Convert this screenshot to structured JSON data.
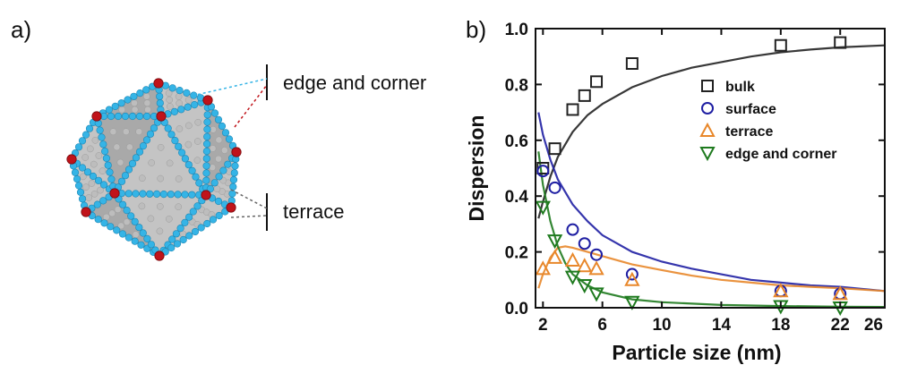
{
  "panel_a": {
    "label": "a)",
    "callouts": [
      "edge and corner",
      "terrace"
    ]
  },
  "panel_b": {
    "label": "b)"
  },
  "colors": {
    "bulk": "#222222",
    "surface": "#1f1fa3",
    "terrace": "#e8872a",
    "edge_and_corner": "#1e7a1e",
    "atom_surface": "#35b4e6",
    "atom_bulk": "#bdbdbd",
    "atom_corner": "#c0131a"
  },
  "chart_data": {
    "type": "scatter",
    "xlabel": "Particle size (nm)",
    "ylabel": "Dispersion",
    "xlim": [
      1.5,
      25
    ],
    "ylim": [
      0,
      1.0
    ],
    "xticks": [
      "2",
      "6",
      "10",
      "14",
      "18",
      "22",
      "26"
    ],
    "yticks": [
      "0.0",
      "0.2",
      "0.4",
      "0.6",
      "0.8",
      "1.0"
    ],
    "legend_position": "upper right",
    "series": [
      {
        "name": "bulk",
        "marker": "square",
        "color": "#222222",
        "x": [
          2.0,
          2.8,
          4.0,
          4.8,
          5.6,
          8.0,
          18.0,
          22.0
        ],
        "y": [
          0.5,
          0.57,
          0.71,
          0.76,
          0.81,
          0.875,
          0.94,
          0.95
        ],
        "fit": [
          [
            1.7,
            0.32
          ],
          [
            2.0,
            0.38
          ],
          [
            2.5,
            0.47
          ],
          [
            3.0,
            0.54
          ],
          [
            4.0,
            0.63
          ],
          [
            5.0,
            0.69
          ],
          [
            6.0,
            0.73
          ],
          [
            8.0,
            0.79
          ],
          [
            10.0,
            0.83
          ],
          [
            12.0,
            0.86
          ],
          [
            14.0,
            0.88
          ],
          [
            16.0,
            0.9
          ],
          [
            18.0,
            0.915
          ],
          [
            20.0,
            0.925
          ],
          [
            22.0,
            0.933
          ],
          [
            25.0,
            0.94
          ]
        ]
      },
      {
        "name": "surface",
        "marker": "circle",
        "color": "#1f1fa3",
        "x": [
          2.0,
          2.8,
          4.0,
          4.8,
          5.6,
          8.0,
          18.0,
          22.0
        ],
        "y": [
          0.49,
          0.43,
          0.28,
          0.23,
          0.19,
          0.12,
          0.06,
          0.05
        ],
        "fit": [
          [
            1.7,
            0.7
          ],
          [
            2.0,
            0.62
          ],
          [
            2.5,
            0.53
          ],
          [
            3.0,
            0.46
          ],
          [
            4.0,
            0.37
          ],
          [
            5.0,
            0.31
          ],
          [
            6.0,
            0.26
          ],
          [
            8.0,
            0.2
          ],
          [
            10.0,
            0.165
          ],
          [
            12.0,
            0.14
          ],
          [
            14.0,
            0.12
          ],
          [
            16.0,
            0.1
          ],
          [
            18.0,
            0.09
          ],
          [
            20.0,
            0.08
          ],
          [
            22.0,
            0.075
          ],
          [
            25.0,
            0.06
          ]
        ]
      },
      {
        "name": "terrace",
        "marker": "triangle-up",
        "color": "#e8872a",
        "x": [
          2.0,
          2.8,
          4.0,
          4.8,
          5.6,
          8.0,
          18.0,
          22.0
        ],
        "y": [
          0.14,
          0.18,
          0.17,
          0.15,
          0.14,
          0.1,
          0.06,
          0.05
        ],
        "fit": [
          [
            1.7,
            0.07
          ],
          [
            2.0,
            0.12
          ],
          [
            2.5,
            0.18
          ],
          [
            3.0,
            0.215
          ],
          [
            3.5,
            0.22
          ],
          [
            4.0,
            0.215
          ],
          [
            5.0,
            0.2
          ],
          [
            6.0,
            0.185
          ],
          [
            8.0,
            0.155
          ],
          [
            10.0,
            0.135
          ],
          [
            12.0,
            0.115
          ],
          [
            14.0,
            0.1
          ],
          [
            16.0,
            0.09
          ],
          [
            18.0,
            0.08
          ],
          [
            20.0,
            0.075
          ],
          [
            22.0,
            0.07
          ],
          [
            25.0,
            0.06
          ]
        ]
      },
      {
        "name": "edge and corner",
        "marker": "triangle-down",
        "color": "#1e7a1e",
        "x": [
          2.0,
          2.8,
          4.0,
          4.8,
          5.6,
          8.0,
          18.0,
          22.0
        ],
        "y": [
          0.36,
          0.24,
          0.11,
          0.08,
          0.05,
          0.02,
          0.005,
          0.0
        ],
        "fit": [
          [
            1.7,
            0.56
          ],
          [
            2.0,
            0.44
          ],
          [
            2.5,
            0.31
          ],
          [
            3.0,
            0.22
          ],
          [
            3.5,
            0.16
          ],
          [
            4.0,
            0.12
          ],
          [
            5.0,
            0.08
          ],
          [
            6.0,
            0.055
          ],
          [
            8.0,
            0.03
          ],
          [
            10.0,
            0.02
          ],
          [
            14.0,
            0.01
          ],
          [
            18.0,
            0.006
          ],
          [
            22.0,
            0.004
          ],
          [
            25.0,
            0.003
          ]
        ]
      }
    ]
  }
}
